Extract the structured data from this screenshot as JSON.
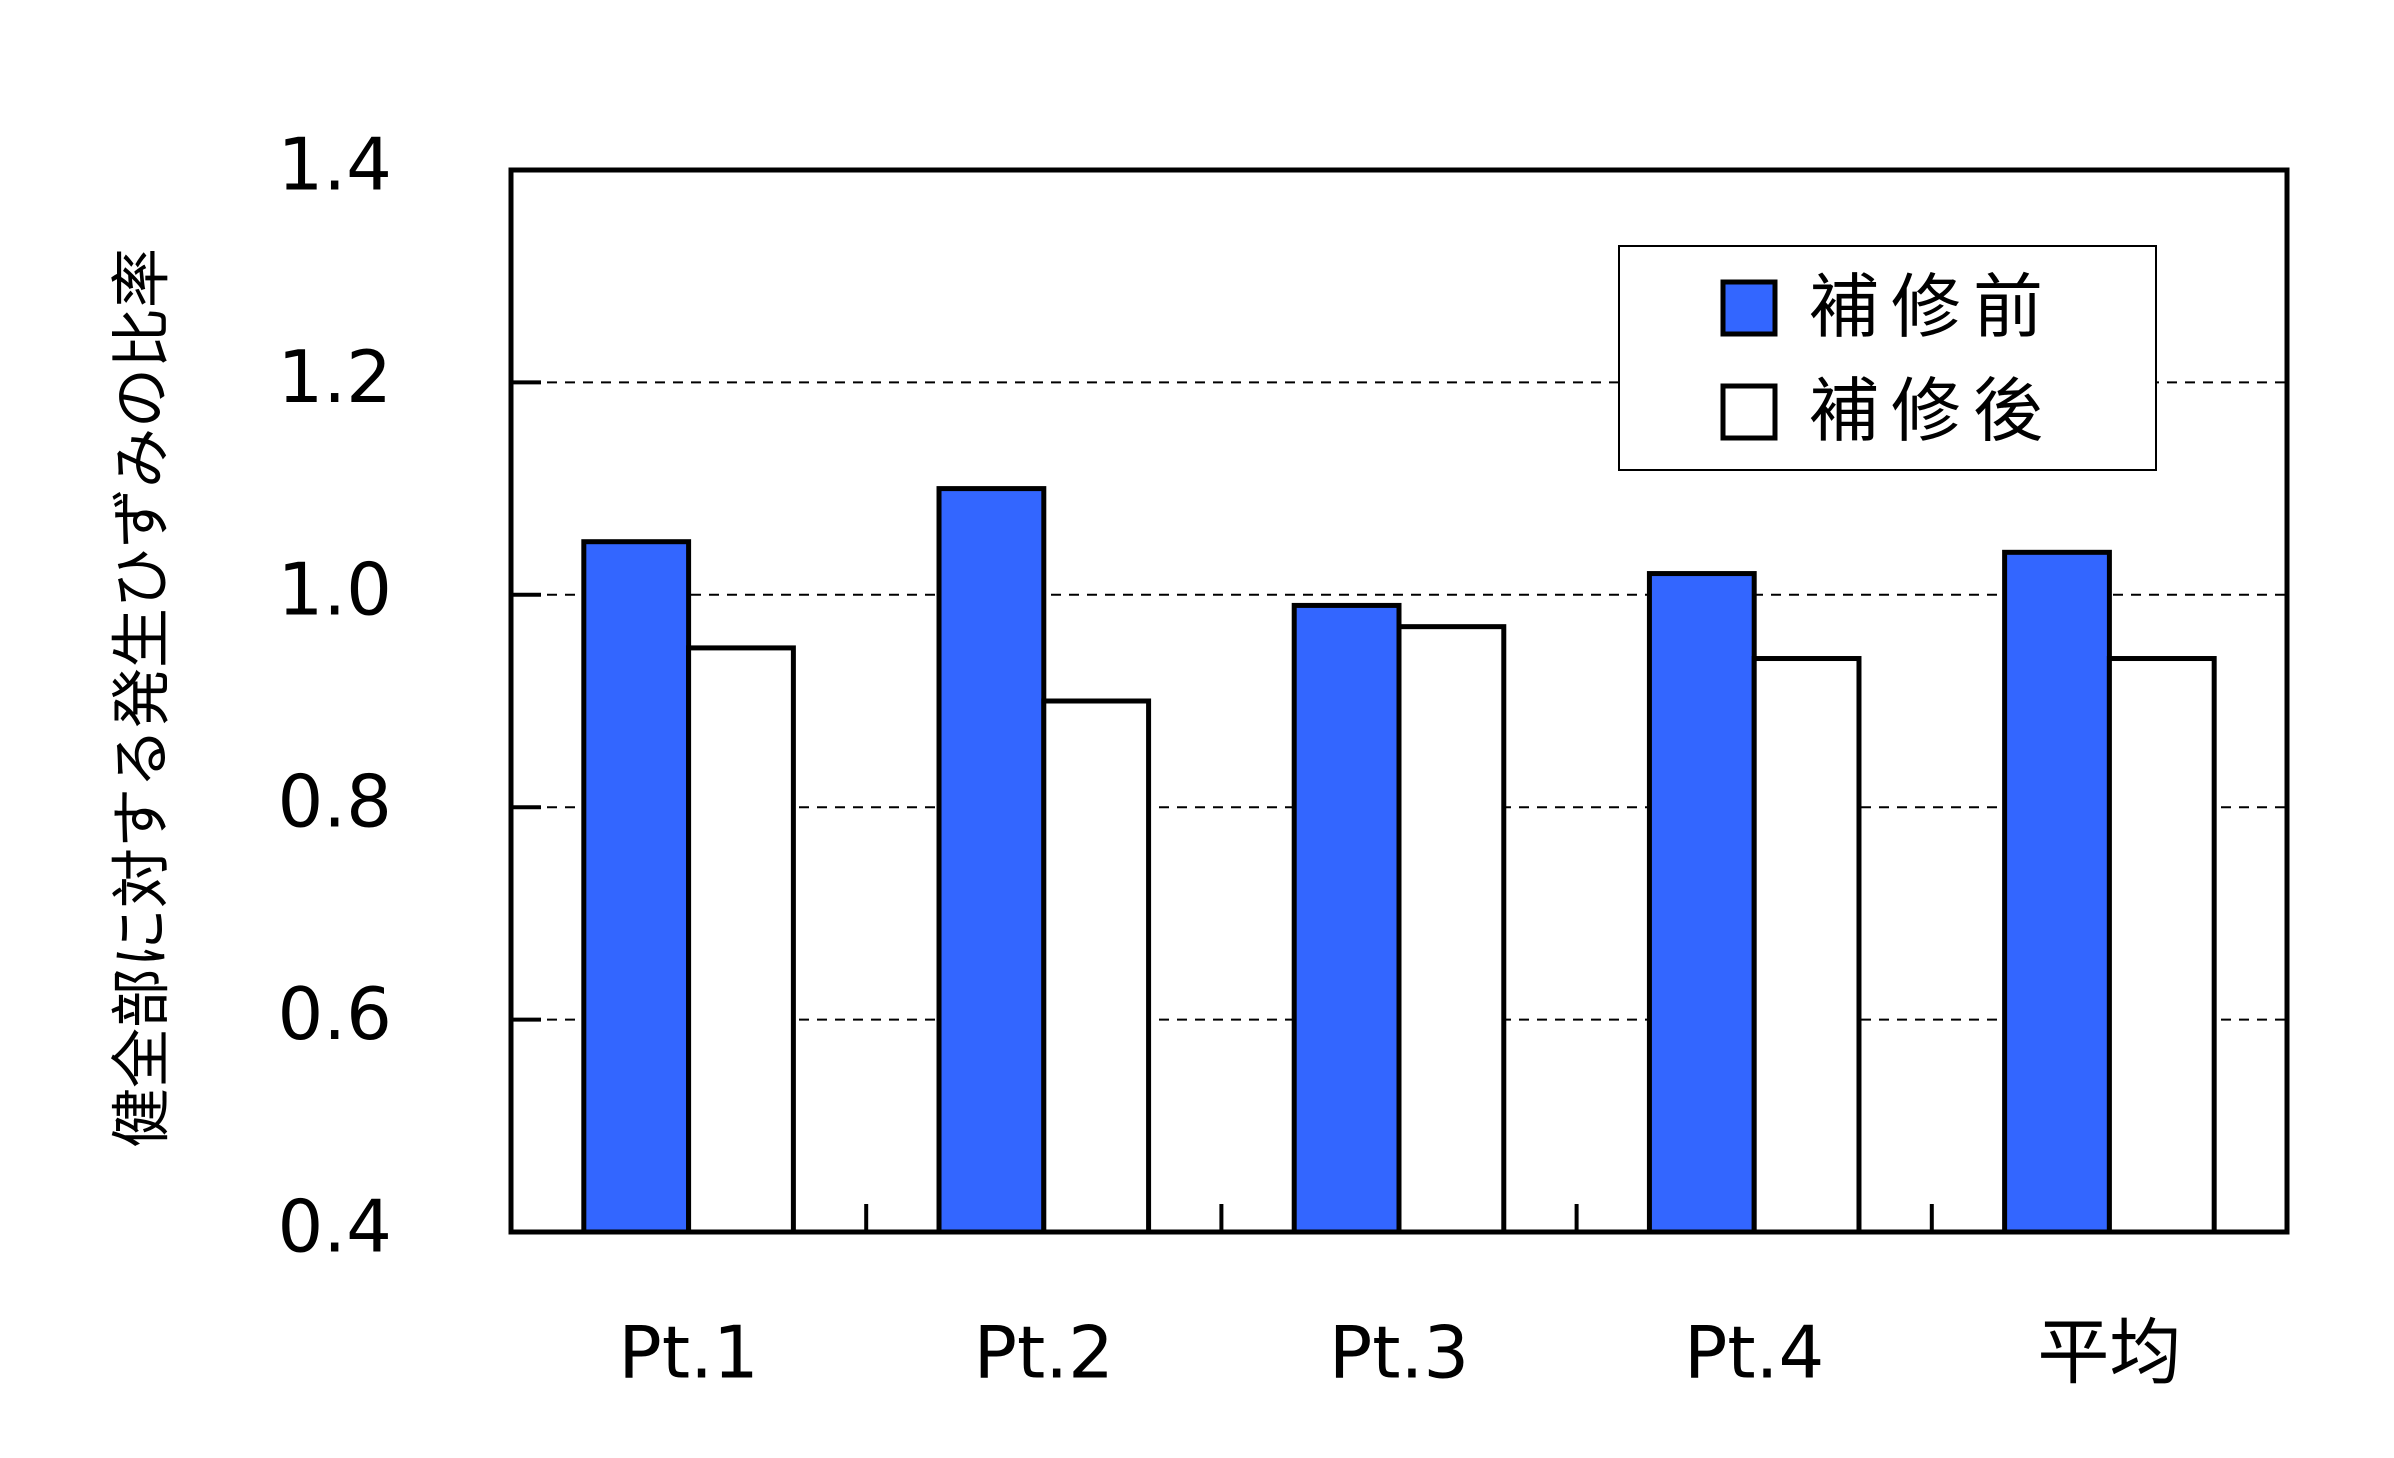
{
  "chart_data": {
    "type": "bar",
    "y_label": "健全部に対する発生ひずみの比率",
    "categories": [
      "Pt.1",
      "Pt.2",
      "Pt.3",
      "Pt.4",
      "平均"
    ],
    "series": [
      {
        "name": "補修前",
        "color": "#3366ff",
        "values": [
          1.05,
          1.1,
          0.99,
          1.02,
          1.04
        ]
      },
      {
        "name": "補修後",
        "color": "#ffffff",
        "values": [
          0.95,
          0.9,
          0.97,
          0.94,
          0.94
        ]
      }
    ],
    "ylim": [
      0.4,
      1.4
    ],
    "yticks": [
      0.4,
      0.6,
      0.8,
      {
        "value": 1.0,
        "label": "1.0"
      },
      1.2,
      1.4
    ],
    "grid": true,
    "legend": "upper right"
  }
}
